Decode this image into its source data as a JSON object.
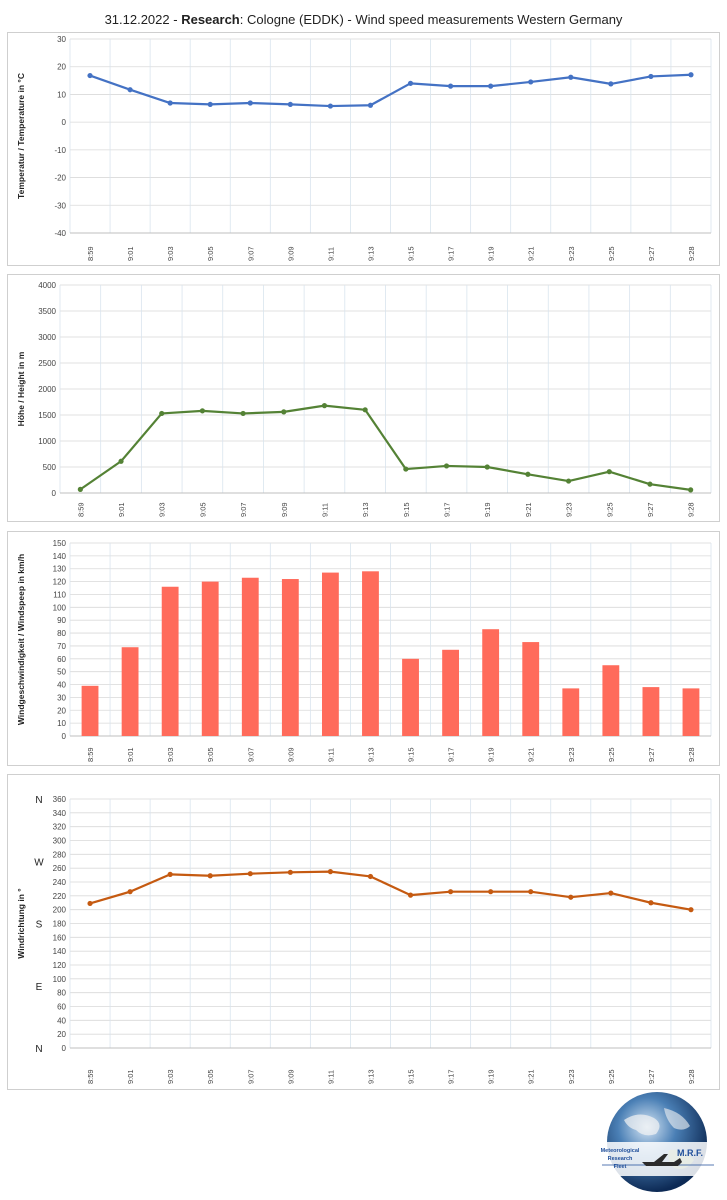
{
  "title": {
    "date": "31.12.2022",
    "sep1": " - ",
    "research_label": "Research",
    "rest": ": Cologne (EDDK) - Wind speed measurements Western Germany"
  },
  "times": [
    "8:59",
    "9:01",
    "9:03",
    "9:05",
    "9:07",
    "9:09",
    "9:11",
    "9:13",
    "9:15",
    "9:17",
    "9:19",
    "9:21",
    "9:23",
    "9:25",
    "9:27",
    "9:28"
  ],
  "chart_data": [
    {
      "type": "line",
      "ylabel": "Temperatur / Temperature in °C",
      "ylim": [
        -40,
        30
      ],
      "ytick_step": 10,
      "grid": true,
      "color": "#4472c4",
      "values": [
        16.8,
        11.7,
        6.9,
        6.4,
        6.9,
        6.4,
        5.8,
        6.1,
        14.0,
        13.0,
        13.0,
        14.5,
        16.2,
        13.8,
        16.5,
        17.1
      ]
    },
    {
      "type": "line",
      "ylabel": "Höhe / Height in m",
      "ylim": [
        0,
        4000
      ],
      "ytick_step": 500,
      "grid": true,
      "color": "#548235",
      "values": [
        70,
        610,
        1530,
        1580,
        1530,
        1560,
        1680,
        1600,
        460,
        520,
        500,
        360,
        230,
        410,
        170,
        60
      ]
    },
    {
      "type": "bar",
      "ylabel": "Windgeschwindigkeit  / Windspeep in km/h",
      "ylim": [
        0,
        150
      ],
      "ytick_step": 10,
      "grid": true,
      "color": "#ff6b5b",
      "values": [
        39,
        69,
        116,
        120,
        123,
        122,
        127,
        128,
        60,
        67,
        83,
        73,
        37,
        55,
        38,
        37
      ]
    },
    {
      "type": "line",
      "ylabel": "Windrichtung in °",
      "ylim": [
        0,
        360
      ],
      "ytick_step": 20,
      "grid": true,
      "color": "#c55a11",
      "compass_labels": [
        {
          "label": "N",
          "value": 0
        },
        {
          "label": "E",
          "value": 90
        },
        {
          "label": "S",
          "value": 180
        },
        {
          "label": "W",
          "value": 270
        },
        {
          "label": "N",
          "value": 360
        }
      ],
      "values": [
        209,
        226,
        251,
        249,
        252,
        254,
        255,
        248,
        221,
        226,
        226,
        226,
        218,
        224,
        210,
        200
      ]
    }
  ],
  "logo": {
    "line1": "Meteorological",
    "line2": "Research",
    "line3": "Fleet",
    "abbr": "M.R.F."
  }
}
